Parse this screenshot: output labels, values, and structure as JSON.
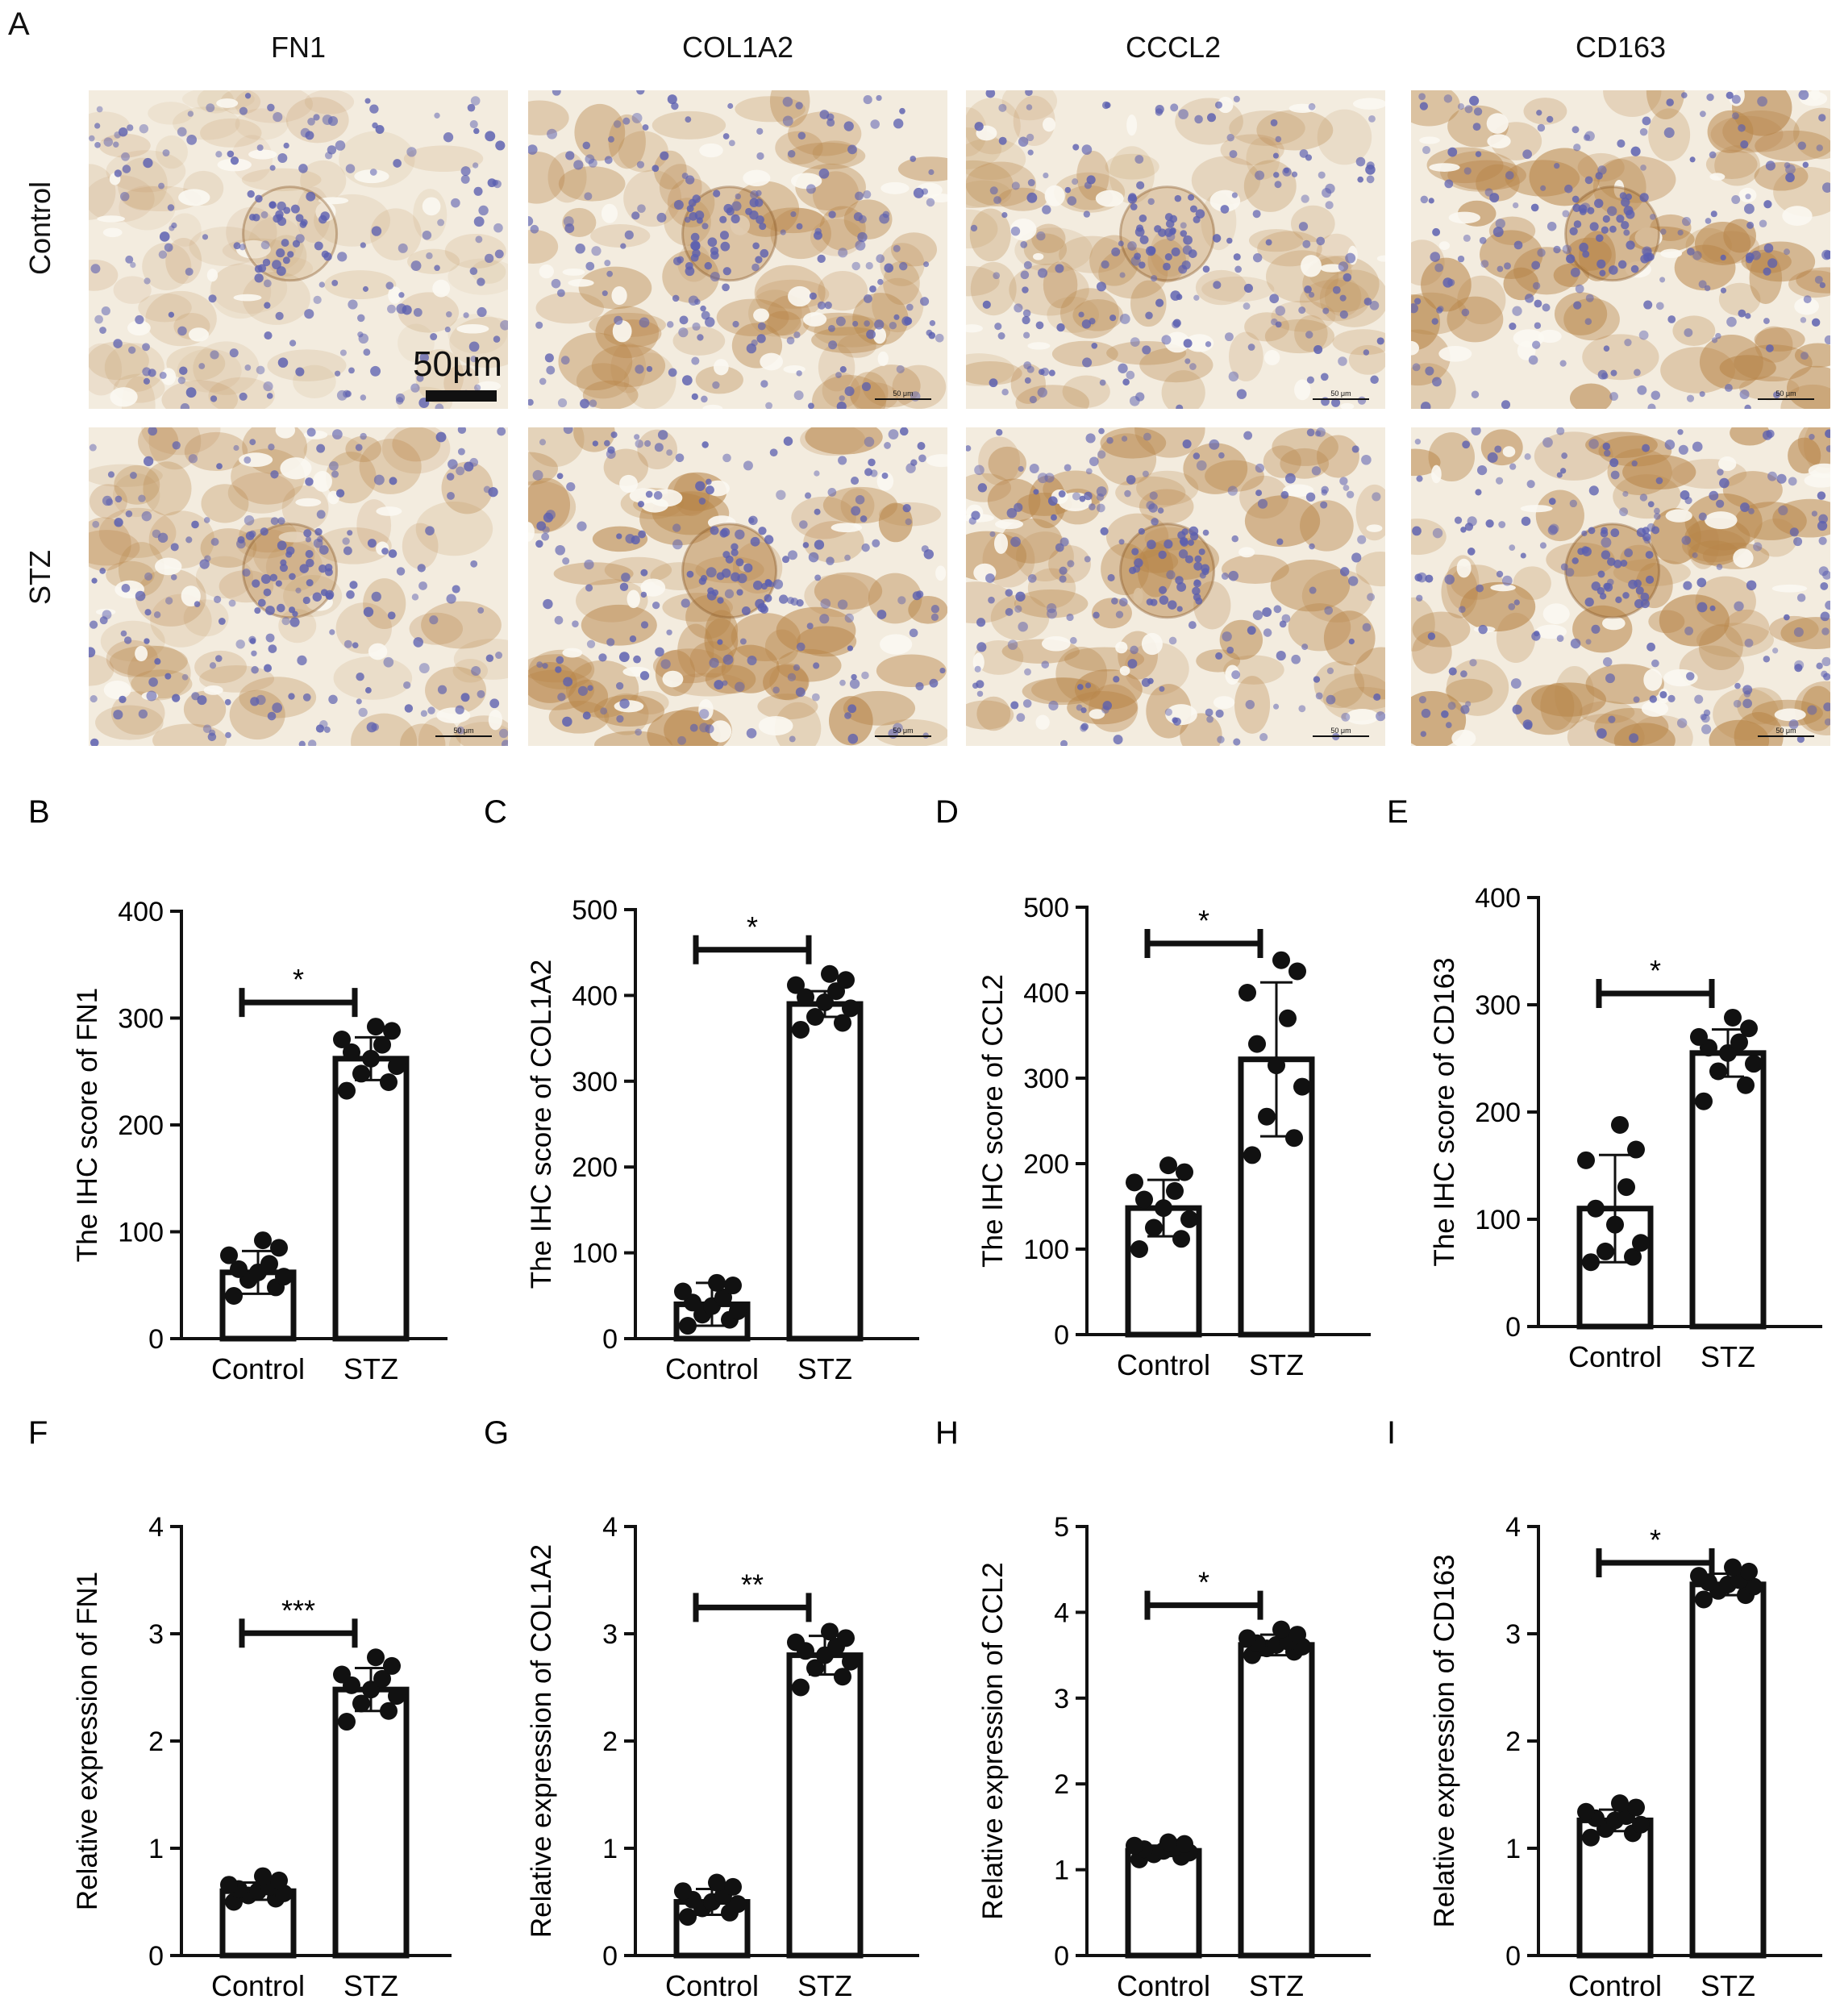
{
  "figure": {
    "panel_a_letter": "A",
    "columns": [
      "FN1",
      "COL1A2",
      "CCCL2",
      "CD163"
    ],
    "rows": [
      "Control",
      "STZ"
    ],
    "scale_bar_label": "50µm",
    "small_scale_label": "50 μm",
    "tissue_colors": {
      "background": "#f3ecdf",
      "stain": "#b8864a",
      "nuclei": "#5b5fb0"
    }
  },
  "chart_data": [
    {
      "letter": "B",
      "type": "bar",
      "categories": [
        "Control",
        "STZ"
      ],
      "values": [
        62,
        262
      ],
      "errors": [
        20,
        20
      ],
      "ylabel": "The IHC score of FN1",
      "ylim": [
        0,
        400
      ],
      "yticks": [
        0,
        100,
        200,
        300,
        400
      ],
      "significance": "*",
      "points": [
        [
          40,
          48,
          55,
          58,
          62,
          65,
          70,
          78,
          85,
          92
        ],
        [
          232,
          240,
          248,
          255,
          262,
          268,
          275,
          280,
          288,
          292
        ]
      ]
    },
    {
      "letter": "C",
      "type": "bar",
      "categories": [
        "Control",
        "STZ"
      ],
      "values": [
        40,
        390
      ],
      "errors": [
        25,
        15
      ],
      "ylabel": "The IHC score of COL1A2",
      "ylim": [
        0,
        500
      ],
      "yticks": [
        0,
        100,
        200,
        300,
        400,
        500
      ],
      "significance": "*",
      "points": [
        [
          15,
          22,
          28,
          32,
          38,
          42,
          48,
          55,
          62,
          65
        ],
        [
          360,
          368,
          375,
          385,
          392,
          398,
          405,
          412,
          418,
          425
        ]
      ]
    },
    {
      "letter": "D",
      "type": "bar",
      "categories": [
        "Control",
        "STZ"
      ],
      "values": [
        148,
        322
      ],
      "errors": [
        33,
        90
      ],
      "ylabel": "The IHC score of CCL2",
      "ylim": [
        0,
        500
      ],
      "yticks": [
        0,
        100,
        200,
        300,
        400,
        500
      ],
      "significance": "*",
      "points": [
        [
          100,
          112,
          125,
          135,
          148,
          158,
          168,
          178,
          190,
          198
        ],
        [
          210,
          230,
          255,
          290,
          315,
          340,
          370,
          400,
          425,
          438
        ]
      ]
    },
    {
      "letter": "E",
      "type": "bar",
      "categories": [
        "Control",
        "STZ"
      ],
      "values": [
        110,
        255
      ],
      "errors": [
        50,
        22
      ],
      "ylabel": "The IHC score of CD163",
      "ylim": [
        0,
        400
      ],
      "yticks": [
        0,
        100,
        200,
        300,
        400
      ],
      "significance": "*",
      "points": [
        [
          60,
          65,
          70,
          78,
          95,
          110,
          130,
          155,
          165,
          188
        ],
        [
          210,
          225,
          238,
          245,
          255,
          260,
          265,
          270,
          278,
          288
        ]
      ]
    },
    {
      "letter": "F",
      "type": "bar",
      "categories": [
        "Control",
        "STZ"
      ],
      "values": [
        0.6,
        2.48
      ],
      "errors": [
        0.08,
        0.2
      ],
      "ylabel": "Relative expression of FN1",
      "ylim": [
        0,
        4
      ],
      "yticks": [
        0,
        1,
        2,
        3,
        4
      ],
      "significance": "***",
      "points": [
        [
          0.5,
          0.53,
          0.56,
          0.58,
          0.6,
          0.62,
          0.64,
          0.66,
          0.7,
          0.74
        ],
        [
          2.18,
          2.28,
          2.35,
          2.42,
          2.48,
          2.52,
          2.58,
          2.62,
          2.7,
          2.78
        ]
      ]
    },
    {
      "letter": "G",
      "type": "bar",
      "categories": [
        "Control",
        "STZ"
      ],
      "values": [
        0.5,
        2.8
      ],
      "errors": [
        0.12,
        0.18
      ],
      "ylabel": "Relative expression of COL1A2",
      "ylim": [
        0,
        4
      ],
      "yticks": [
        0,
        1,
        2,
        3,
        4
      ],
      "significance": "**",
      "points": [
        [
          0.36,
          0.4,
          0.44,
          0.48,
          0.5,
          0.52,
          0.56,
          0.6,
          0.64,
          0.68
        ],
        [
          2.5,
          2.6,
          2.68,
          2.74,
          2.8,
          2.84,
          2.88,
          2.92,
          2.96,
          3.02
        ]
      ]
    },
    {
      "letter": "H",
      "type": "bar",
      "categories": [
        "Control",
        "STZ"
      ],
      "values": [
        1.22,
        3.62
      ],
      "errors": [
        0.06,
        0.12
      ],
      "ylabel": "Relative expression of CCL2",
      "ylim": [
        0,
        5
      ],
      "yticks": [
        0,
        1,
        2,
        3,
        4,
        5
      ],
      "significance": "*",
      "points": [
        [
          1.12,
          1.15,
          1.18,
          1.2,
          1.22,
          1.24,
          1.26,
          1.28,
          1.3,
          1.32
        ],
        [
          3.5,
          3.54,
          3.58,
          3.6,
          3.62,
          3.64,
          3.66,
          3.7,
          3.74,
          3.8
        ]
      ]
    },
    {
      "letter": "I",
      "type": "bar",
      "categories": [
        "Control",
        "STZ"
      ],
      "values": [
        1.26,
        3.46
      ],
      "errors": [
        0.1,
        0.1
      ],
      "ylabel": "Relative expression of CD163",
      "ylim": [
        0,
        4
      ],
      "yticks": [
        0,
        1,
        2,
        3,
        4
      ],
      "significance": "*",
      "points": [
        [
          1.1,
          1.14,
          1.18,
          1.22,
          1.26,
          1.28,
          1.3,
          1.34,
          1.38,
          1.42
        ],
        [
          3.32,
          3.36,
          3.4,
          3.44,
          3.46,
          3.48,
          3.5,
          3.54,
          3.58,
          3.62
        ]
      ]
    }
  ]
}
